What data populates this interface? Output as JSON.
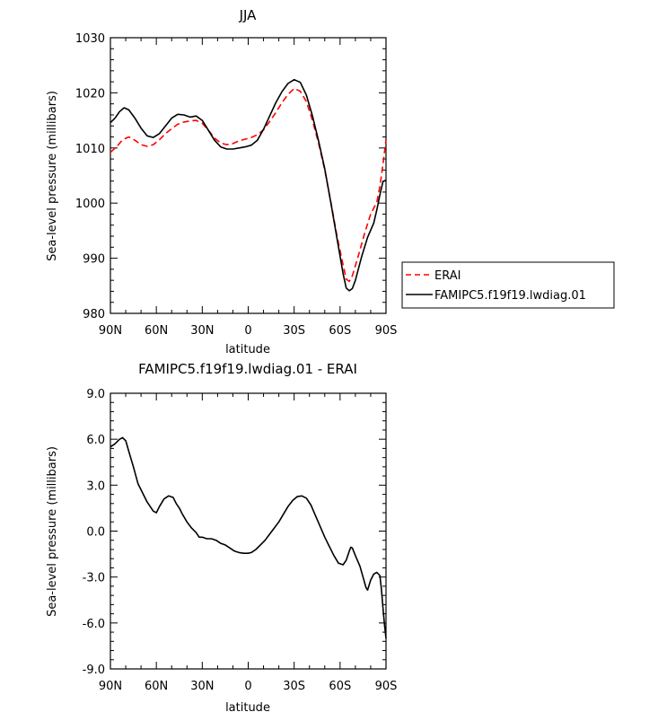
{
  "chart_data": [
    {
      "type": "line",
      "title": "JJA",
      "xlabel": "latitude",
      "ylabel": "Sea-level pressure (millibars)",
      "x_tick_labels": [
        "90N",
        "60N",
        "30N",
        "0",
        "30S",
        "60S",
        "90S"
      ],
      "x_tick_values": [
        90,
        60,
        30,
        0,
        -30,
        -60,
        -90
      ],
      "xlim": [
        90,
        -90
      ],
      "ylim": [
        980,
        1030
      ],
      "y_ticks": [
        980,
        990,
        1000,
        1010,
        1020,
        1030
      ],
      "y_tick_labels": [
        "980",
        "990",
        "1000",
        "1010",
        "1020",
        "1030"
      ],
      "legend_position": "right",
      "series": [
        {
          "name": "ERAI",
          "color": "#ff0000",
          "dash": "dashed",
          "points": [
            [
              90,
              1009.2
            ],
            [
              86,
              1010.2
            ],
            [
              82,
              1011.5
            ],
            [
              78,
              1012.0
            ],
            [
              74,
              1011.4
            ],
            [
              70,
              1010.6
            ],
            [
              66,
              1010.3
            ],
            [
              62,
              1010.6
            ],
            [
              58,
              1011.5
            ],
            [
              54,
              1012.6
            ],
            [
              50,
              1013.5
            ],
            [
              46,
              1014.3
            ],
            [
              42,
              1014.7
            ],
            [
              38,
              1014.9
            ],
            [
              34,
              1015.0
            ],
            [
              30,
              1014.5
            ],
            [
              26,
              1013.2
            ],
            [
              22,
              1011.8
            ],
            [
              18,
              1010.9
            ],
            [
              14,
              1010.6
            ],
            [
              10,
              1010.8
            ],
            [
              6,
              1011.3
            ],
            [
              2,
              1011.6
            ],
            [
              -2,
              1011.9
            ],
            [
              -6,
              1012.4
            ],
            [
              -10,
              1013.3
            ],
            [
              -14,
              1014.8
            ],
            [
              -18,
              1016.4
            ],
            [
              -22,
              1018.2
            ],
            [
              -26,
              1019.7
            ],
            [
              -30,
              1020.8
            ],
            [
              -34,
              1020.3
            ],
            [
              -38,
              1018.4
            ],
            [
              -42,
              1015.0
            ],
            [
              -46,
              1010.8
            ],
            [
              -50,
              1006.0
            ],
            [
              -54,
              1000.2
            ],
            [
              -58,
              994.0
            ],
            [
              -62,
              988.8
            ],
            [
              -64,
              986.2
            ],
            [
              -66,
              985.8
            ],
            [
              -68,
              986.8
            ],
            [
              -72,
              990.5
            ],
            [
              -76,
              994.5
            ],
            [
              -80,
              998.0
            ],
            [
              -84,
              1000.2
            ],
            [
              -86,
              1003.0
            ],
            [
              -88,
              1007.0
            ],
            [
              -90,
              1011.5
            ]
          ]
        },
        {
          "name": "FAMIPC5.f19f19.lwdiag.01",
          "color": "#000000",
          "dash": "solid",
          "points": [
            [
              90,
              1014.6
            ],
            [
              87,
              1015.4
            ],
            [
              84,
              1016.6
            ],
            [
              81,
              1017.3
            ],
            [
              78,
              1016.9
            ],
            [
              74,
              1015.4
            ],
            [
              70,
              1013.6
            ],
            [
              66,
              1012.2
            ],
            [
              62,
              1011.9
            ],
            [
              58,
              1012.6
            ],
            [
              54,
              1014.0
            ],
            [
              50,
              1015.4
            ],
            [
              46,
              1016.1
            ],
            [
              42,
              1016.0
            ],
            [
              38,
              1015.6
            ],
            [
              34,
              1015.8
            ],
            [
              30,
              1015.0
            ],
            [
              26,
              1013.2
            ],
            [
              22,
              1011.4
            ],
            [
              18,
              1010.2
            ],
            [
              14,
              1009.8
            ],
            [
              10,
              1009.8
            ],
            [
              6,
              1010.0
            ],
            [
              2,
              1010.2
            ],
            [
              -2,
              1010.5
            ],
            [
              -6,
              1011.4
            ],
            [
              -10,
              1013.4
            ],
            [
              -14,
              1015.8
            ],
            [
              -18,
              1018.2
            ],
            [
              -22,
              1020.2
            ],
            [
              -26,
              1021.7
            ],
            [
              -30,
              1022.4
            ],
            [
              -34,
              1021.9
            ],
            [
              -38,
              1019.6
            ],
            [
              -42,
              1015.8
            ],
            [
              -46,
              1011.2
            ],
            [
              -50,
              1006.2
            ],
            [
              -54,
              1000.0
            ],
            [
              -58,
              993.6
            ],
            [
              -62,
              987.2
            ],
            [
              -64,
              984.6
            ],
            [
              -66,
              984.1
            ],
            [
              -68,
              984.5
            ],
            [
              -70,
              986.0
            ],
            [
              -74,
              990.2
            ],
            [
              -78,
              993.8
            ],
            [
              -82,
              996.4
            ],
            [
              -84,
              998.8
            ],
            [
              -86,
              1001.5
            ],
            [
              -88,
              1003.9
            ],
            [
              -90,
              1004.2
            ]
          ]
        }
      ]
    },
    {
      "type": "line",
      "title": "FAMIPC5.f19f19.lwdiag.01 - ERAI",
      "xlabel": "latitude",
      "ylabel": "Sea-level pressure (millibars)",
      "x_tick_labels": [
        "90N",
        "60N",
        "30N",
        "0",
        "30S",
        "60S",
        "90S"
      ],
      "x_tick_values": [
        90,
        60,
        30,
        0,
        -30,
        -60,
        -90
      ],
      "xlim": [
        90,
        -90
      ],
      "ylim": [
        -9,
        9
      ],
      "y_ticks": [
        -9,
        -6,
        -3,
        0,
        3,
        6,
        9
      ],
      "y_tick_labels": [
        "-9.0",
        "-6.0",
        "-3.0",
        "0.0",
        "3.0",
        "6.0",
        "9.0"
      ],
      "series": [
        {
          "color": "#000000",
          "dash": "solid",
          "points": [
            [
              90,
              5.5
            ],
            [
              87,
              5.7
            ],
            [
              84,
              6.0
            ],
            [
              82,
              6.1
            ],
            [
              80,
              5.9
            ],
            [
              78,
              5.2
            ],
            [
              75,
              4.2
            ],
            [
              72,
              3.1
            ],
            [
              69,
              2.5
            ],
            [
              66,
              1.9
            ],
            [
              62,
              1.3
            ],
            [
              60,
              1.2
            ],
            [
              58,
              1.6
            ],
            [
              55,
              2.1
            ],
            [
              52,
              2.3
            ],
            [
              49,
              2.2
            ],
            [
              47,
              1.8
            ],
            [
              45,
              1.5
            ],
            [
              43,
              1.1
            ],
            [
              40,
              0.6
            ],
            [
              37,
              0.2
            ],
            [
              34,
              -0.1
            ],
            [
              32,
              -0.4
            ],
            [
              30,
              -0.4
            ],
            [
              27,
              -0.5
            ],
            [
              24,
              -0.5
            ],
            [
              21,
              -0.6
            ],
            [
              18,
              -0.8
            ],
            [
              15,
              -0.9
            ],
            [
              12,
              -1.1
            ],
            [
              9,
              -1.3
            ],
            [
              6,
              -1.4
            ],
            [
              3,
              -1.45
            ],
            [
              0,
              -1.45
            ],
            [
              -2,
              -1.4
            ],
            [
              -5,
              -1.2
            ],
            [
              -8,
              -0.9
            ],
            [
              -11,
              -0.6
            ],
            [
              -14,
              -0.2
            ],
            [
              -17,
              0.2
            ],
            [
              -20,
              0.6
            ],
            [
              -23,
              1.1
            ],
            [
              -26,
              1.6
            ],
            [
              -29,
              2.0
            ],
            [
              -32,
              2.25
            ],
            [
              -35,
              2.3
            ],
            [
              -38,
              2.15
            ],
            [
              -41,
              1.7
            ],
            [
              -44,
              1.0
            ],
            [
              -47,
              0.3
            ],
            [
              -50,
              -0.4
            ],
            [
              -53,
              -1.0
            ],
            [
              -56,
              -1.6
            ],
            [
              -59,
              -2.1
            ],
            [
              -62,
              -2.2
            ],
            [
              -64,
              -1.9
            ],
            [
              -66,
              -1.3
            ],
            [
              -67,
              -1.05
            ],
            [
              -68,
              -1.1
            ],
            [
              -70,
              -1.6
            ],
            [
              -73,
              -2.3
            ],
            [
              -75,
              -3.0
            ],
            [
              -77,
              -3.7
            ],
            [
              -78,
              -3.85
            ],
            [
              -80,
              -3.2
            ],
            [
              -82,
              -2.8
            ],
            [
              -84,
              -2.7
            ],
            [
              -86,
              -2.9
            ],
            [
              -87,
              -3.8
            ],
            [
              -88,
              -5.0
            ],
            [
              -89,
              -6.1
            ],
            [
              -90,
              -7.0
            ]
          ]
        }
      ]
    }
  ]
}
